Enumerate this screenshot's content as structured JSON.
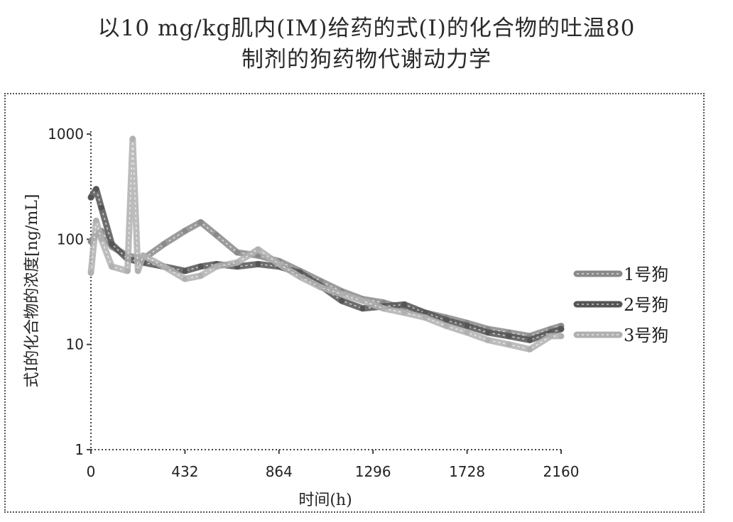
{
  "title_line1": "以10 mg/kg肌内(IM)给药的式(I)的化合物的吐温80",
  "title_line2": "制剂的狗药物代谢动力学",
  "chart_data": {
    "type": "line",
    "title": "以10 mg/kg肌内(IM)给药的式(I)的化合物的吐温80 制剂的狗药物代谢动力学",
    "xlabel": "时间(h)",
    "ylabel": "式I的化合物的浓度[ng/mL]",
    "x_ticks": [
      0,
      432,
      864,
      1296,
      1728,
      2160
    ],
    "y_ticks": [
      1,
      10,
      100,
      1000
    ],
    "xlim": [
      0,
      2160
    ],
    "ylim": [
      1,
      1000
    ],
    "y_scale": "log",
    "grid": false,
    "legend_position": "right",
    "series": [
      {
        "name": "1号狗",
        "color": "#8a8a8a",
        "x": [
          0,
          24,
          48,
          96,
          168,
          240,
          336,
          432,
          504,
          576,
          672,
          768,
          864,
          960,
          1056,
          1152,
          1248,
          1344,
          1440,
          1536,
          1632,
          1728,
          1824,
          1920,
          2016,
          2112,
          2160
        ],
        "y": [
          95,
          110,
          120,
          85,
          70,
          65,
          90,
          120,
          145,
          110,
          75,
          70,
          62,
          50,
          40,
          32,
          27,
          25,
          22,
          20,
          18,
          16,
          14,
          13,
          12,
          14,
          15
        ]
      },
      {
        "name": "2号狗",
        "color": "#555555",
        "x": [
          0,
          24,
          48,
          96,
          168,
          240,
          336,
          432,
          504,
          576,
          672,
          768,
          864,
          960,
          1056,
          1152,
          1248,
          1344,
          1440,
          1536,
          1632,
          1728,
          1824,
          1920,
          2016,
          2112,
          2160
        ],
        "y": [
          250,
          300,
          200,
          90,
          65,
          60,
          55,
          50,
          55,
          58,
          55,
          58,
          55,
          48,
          36,
          26,
          22,
          23,
          24,
          20,
          17,
          15,
          13,
          12,
          11,
          13,
          14
        ]
      },
      {
        "name": "3号狗",
        "color": "#b0b0b0",
        "x": [
          0,
          24,
          48,
          96,
          168,
          192,
          216,
          240,
          336,
          432,
          504,
          576,
          672,
          768,
          864,
          960,
          1056,
          1152,
          1248,
          1344,
          1440,
          1536,
          1632,
          1728,
          1824,
          1920,
          2016,
          2112,
          2160
        ],
        "y": [
          48,
          150,
          100,
          55,
          50,
          900,
          50,
          70,
          55,
          42,
          45,
          55,
          60,
          80,
          58,
          44,
          35,
          30,
          26,
          22,
          20,
          18,
          15,
          13,
          11,
          10,
          9,
          12,
          12
        ]
      }
    ]
  }
}
